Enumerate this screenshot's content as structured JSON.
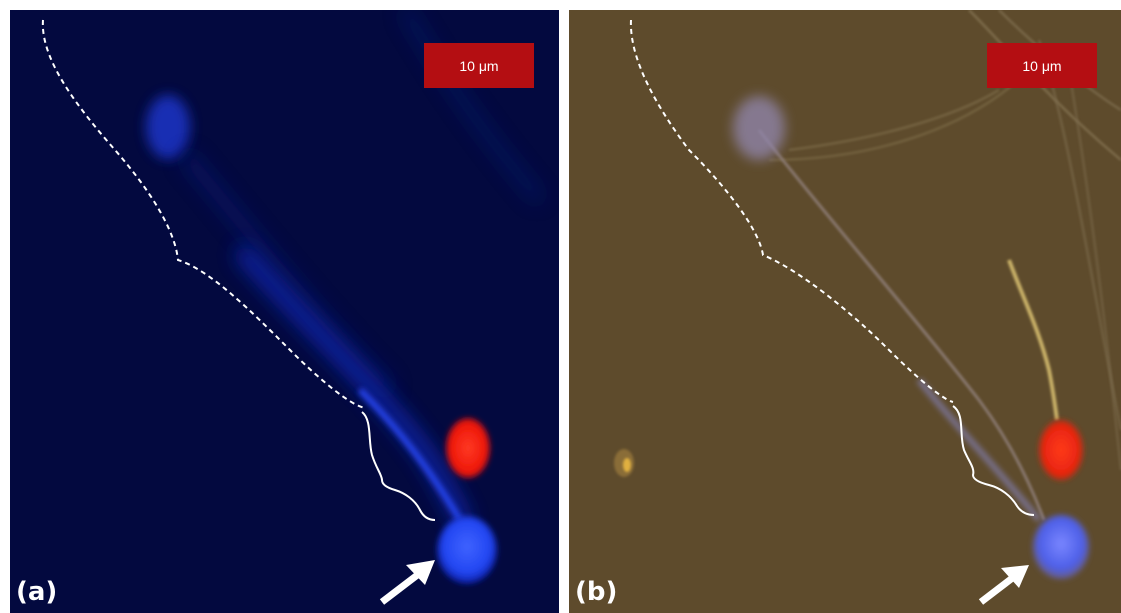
{
  "panels": [
    {
      "label": "(a)",
      "scale_bar": "10 μm",
      "mode": "fluorescence",
      "background_color": "#03093f"
    },
    {
      "label": "(b)",
      "scale_bar": "10 μm",
      "mode": "brightfield-overlay",
      "background_color": "#5e4b2c"
    }
  ],
  "colors": {
    "scale_bar_fill": "#b40e12",
    "blue_stain": "#2b4cff",
    "red_stain": "#ff2a1a",
    "annotation": "#ffffff"
  },
  "icons": [
    "dashed-outline",
    "curly-brace",
    "arrow-icon"
  ]
}
